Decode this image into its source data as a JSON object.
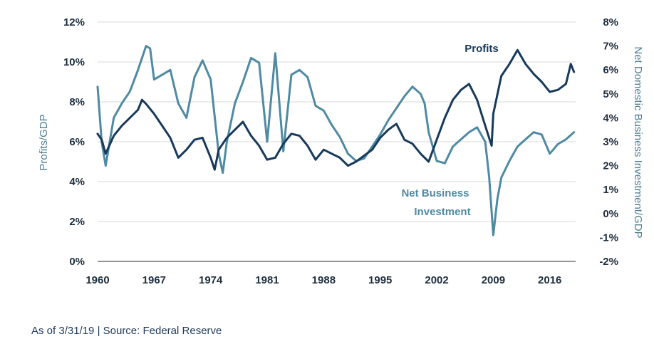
{
  "chart_data": {
    "type": "line",
    "title": "",
    "xlabel": "",
    "ylabel": "Profits/GDP",
    "y2label": "Net Domestic Business Investment/GDP",
    "xlim": [
      1960,
      2019.2
    ],
    "ylim": [
      0,
      12
    ],
    "y2lim": [
      -2,
      8
    ],
    "x_ticks": [
      "1960",
      "1967",
      "1974",
      "1981",
      "1988",
      "1995",
      "2002",
      "2009",
      "2016"
    ],
    "y_ticks": [
      "0%",
      "2%",
      "4%",
      "6%",
      "8%",
      "10%",
      "12%"
    ],
    "y2_ticks": [
      "-2%",
      "-1%",
      "0%",
      "1%",
      "2%",
      "3%",
      "4%",
      "5%",
      "6%",
      "7%",
      "8%"
    ],
    "grid": "horizontal",
    "series": [
      {
        "name": "Profits",
        "axis": "left",
        "color": "#173a5c",
        "x": [
          1960,
          1960.5,
          1961,
          1962,
          1963,
          1964,
          1965,
          1965.5,
          1966,
          1967,
          1968,
          1969,
          1970,
          1971,
          1972,
          1973,
          1974,
          1974.5,
          1975,
          1976,
          1977,
          1978,
          1979,
          1980,
          1981,
          1982,
          1983,
          1984,
          1985,
          1986,
          1987,
          1988,
          1989,
          1990,
          1991,
          1992,
          1993,
          1994,
          1995,
          1996,
          1997,
          1998,
          1999,
          2000,
          2001,
          2002,
          2003,
          2004,
          2005,
          2006,
          2007,
          2008,
          2008.8,
          2009,
          2010,
          2011,
          2012,
          2013,
          2014,
          2015,
          2016,
          2017,
          2018,
          2018.6,
          2019
        ],
        "values": [
          6.4,
          6.1,
          5.4,
          6.3,
          6.8,
          7.2,
          7.6,
          8.1,
          7.9,
          7.4,
          6.8,
          6.2,
          5.2,
          5.6,
          6.1,
          6.2,
          5.2,
          4.6,
          5.6,
          6.2,
          6.6,
          7.0,
          6.3,
          5.8,
          5.1,
          5.2,
          5.9,
          6.4,
          6.3,
          5.8,
          5.1,
          5.6,
          5.4,
          5.2,
          4.8,
          5.0,
          5.3,
          5.6,
          6.2,
          6.6,
          6.9,
          6.1,
          5.9,
          5.4,
          5.0,
          6.1,
          7.2,
          8.1,
          8.6,
          8.9,
          8.1,
          6.8,
          5.8,
          7.4,
          9.3,
          9.9,
          10.6,
          9.9,
          9.4,
          9.0,
          8.5,
          8.6,
          8.9,
          9.9,
          9.5
        ]
      },
      {
        "name": "Net Business Investment",
        "axis": "right",
        "color": "#4f8aa3",
        "x": [
          1960,
          1960.5,
          1961,
          1962,
          1963,
          1964,
          1965,
          1966,
          1966.5,
          1967,
          1968,
          1969,
          1970,
          1971,
          1972,
          1973,
          1974,
          1975,
          1975.5,
          1976,
          1977,
          1978,
          1979,
          1980,
          1981,
          1982,
          1983,
          1984,
          1985,
          1986,
          1987,
          1988,
          1989,
          1990,
          1991,
          1992,
          1993,
          1994,
          1995,
          1996,
          1997,
          1998,
          1999,
          2000,
          2000.5,
          2001,
          2002,
          2003,
          2004,
          2005,
          2006,
          2007,
          2008,
          2008.5,
          2009,
          2009.5,
          2010,
          2011,
          2012,
          2013,
          2014,
          2015,
          2016,
          2017,
          2018,
          2019
        ],
        "values": [
          5.3,
          3.0,
          2.0,
          4.0,
          4.6,
          5.1,
          6.0,
          7.0,
          6.9,
          5.6,
          5.8,
          6.0,
          4.6,
          4.0,
          5.7,
          6.4,
          5.6,
          2.5,
          1.7,
          3.0,
          4.6,
          5.5,
          6.5,
          6.3,
          3.0,
          6.7,
          2.6,
          5.8,
          6.0,
          5.7,
          4.5,
          4.3,
          3.7,
          3.2,
          2.5,
          2.2,
          2.3,
          2.8,
          3.3,
          3.9,
          4.4,
          4.9,
          5.3,
          5.0,
          4.6,
          3.4,
          2.2,
          2.1,
          2.8,
          3.1,
          3.4,
          3.6,
          3.0,
          1.5,
          -0.9,
          0.6,
          1.5,
          2.2,
          2.8,
          3.1,
          3.4,
          3.3,
          2.5,
          2.9,
          3.1,
          3.4
        ]
      }
    ],
    "annotations": [
      {
        "text": "Profits",
        "series": "Profits"
      },
      {
        "text": "Net Business Investment",
        "lines": [
          "Net Business",
          "Investment"
        ],
        "series": "Net Business Investment"
      }
    ]
  },
  "footer": {
    "note": "As of 3/31/19 | Source: Federal Reserve"
  }
}
